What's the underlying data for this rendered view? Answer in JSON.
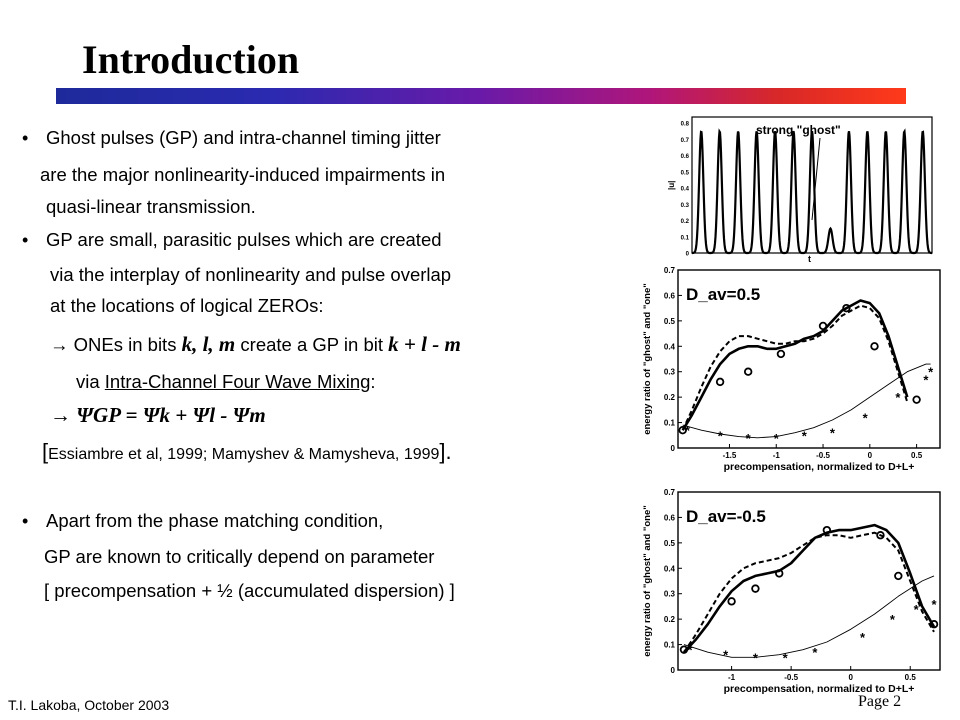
{
  "title": "Introduction",
  "bullets": [
    {
      "lines": [
        "Ghost pulses (GP) and intra-channel timing jitter",
        "are the major nonlinearity-induced  impairments in",
        "quasi-linear transmission."
      ]
    },
    {
      "lines": [
        "GP are small, parasitic pulses which are created",
        "via the interplay of nonlinearity  and pulse overlap",
        "at the locations of logical  ZEROs:"
      ],
      "arrow_line": {
        "arrow": "→",
        "prefix": " ONEs in bits  ",
        "bits": "k, l, m",
        "middle": "  create a GP in bit  ",
        "expr": "k + l - m"
      },
      "via_line": {
        "prefix": "via  ",
        "link": "Intra-Channel Four Wave Mixing",
        "suffix": ":"
      },
      "formula": "→   ΨGP = Ψk + Ψl - Ψm",
      "citation": {
        "open": "[",
        "text": "Essiambre et al, 1999;  Mamyshev & Mamysheva, 1999",
        "close": "]."
      }
    },
    {
      "lines": [
        "Apart from the phase matching condition,",
        "GP are known to critically depend on parameter",
        "[ precompensation + ½ (accumulated dispersion) ]"
      ]
    }
  ],
  "footer": {
    "author": "T.I.  Lakoba,    October 2003",
    "page": "Page 2"
  },
  "top_figure": {
    "annotation": "strong \"ghost\"",
    "ylabel": "|u|",
    "xlabel": "t",
    "yticks": [
      "0.8",
      "0.7",
      "0.6",
      "0.5",
      "0.4",
      "0.3",
      "0.2",
      "0.1",
      "0"
    ]
  },
  "chart_data": [
    {
      "type": "line",
      "label": "D_av=0.5",
      "xlabel": "precompensation, normalized to  D+L+",
      "ylabel": "energy ratio of \"ghost\" and \"one\"",
      "xlim": [
        -2.05,
        0.75
      ],
      "ylim": [
        0,
        0.7
      ],
      "xticks": [
        "-1.5",
        "-1",
        "-0.5",
        "0",
        "0.5"
      ],
      "yticks": [
        "0.7",
        "0.6",
        "0.5",
        "0.4",
        "0.3",
        "0.2",
        "0.1",
        "0"
      ],
      "series": [
        {
          "style": "solid-thick",
          "x": [
            -2.0,
            -1.9,
            -1.8,
            -1.7,
            -1.6,
            -1.5,
            -1.4,
            -1.3,
            -1.2,
            -1.1,
            -1.0,
            -0.9,
            -0.8,
            -0.7,
            -0.6,
            -0.5,
            -0.4,
            -0.3,
            -0.2,
            -0.1,
            0.0,
            0.1,
            0.2,
            0.3,
            0.4
          ],
          "y": [
            0.07,
            0.13,
            0.2,
            0.27,
            0.33,
            0.37,
            0.39,
            0.4,
            0.4,
            0.39,
            0.39,
            0.4,
            0.41,
            0.43,
            0.44,
            0.46,
            0.5,
            0.54,
            0.56,
            0.58,
            0.57,
            0.53,
            0.44,
            0.32,
            0.2
          ]
        },
        {
          "style": "dashed-thick",
          "x": [
            -2.0,
            -1.9,
            -1.8,
            -1.7,
            -1.6,
            -1.5,
            -1.4,
            -1.3,
            -1.2,
            -1.1,
            -1.0,
            -0.9,
            -0.8,
            -0.7,
            -0.6,
            -0.5,
            -0.4,
            -0.3,
            -0.2,
            -0.1,
            0.0,
            0.1,
            0.2,
            0.3,
            0.4
          ],
          "y": [
            0.07,
            0.15,
            0.24,
            0.32,
            0.38,
            0.42,
            0.44,
            0.44,
            0.43,
            0.42,
            0.41,
            0.41,
            0.42,
            0.42,
            0.43,
            0.45,
            0.48,
            0.52,
            0.54,
            0.56,
            0.55,
            0.51,
            0.42,
            0.3,
            0.18
          ]
        },
        {
          "style": "thin",
          "x": [
            -2.0,
            -1.8,
            -1.6,
            -1.4,
            -1.2,
            -1.0,
            -0.8,
            -0.6,
            -0.4,
            -0.2,
            0.0,
            0.2,
            0.4,
            0.6,
            0.65
          ],
          "y": [
            0.09,
            0.07,
            0.055,
            0.045,
            0.04,
            0.045,
            0.06,
            0.08,
            0.11,
            0.15,
            0.2,
            0.25,
            0.3,
            0.33,
            0.33
          ]
        },
        {
          "style": "circles",
          "x": [
            -2.0,
            -1.6,
            -1.3,
            -0.95,
            -0.5,
            -0.25,
            0.05,
            0.5
          ],
          "y": [
            0.07,
            0.26,
            0.3,
            0.37,
            0.48,
            0.55,
            0.4,
            0.19
          ]
        },
        {
          "style": "stars",
          "x": [
            -1.95,
            -1.6,
            -1.3,
            -1.0,
            -0.7,
            -0.4,
            -0.05,
            0.3,
            0.6,
            0.65
          ],
          "y": [
            0.07,
            0.05,
            0.04,
            0.04,
            0.05,
            0.06,
            0.12,
            0.2,
            0.27,
            0.3
          ]
        }
      ]
    },
    {
      "type": "line",
      "label": "D_av=-0.5",
      "xlabel": "precompensation, normalized to  D+L+",
      "ylabel": "energy ratio of \"ghost\" and \"one\"",
      "xlim": [
        -1.45,
        0.75
      ],
      "ylim": [
        0,
        0.7
      ],
      "xticks": [
        "-1",
        "-0.5",
        "0",
        "0.5"
      ],
      "yticks": [
        "0.7",
        "0.6",
        "0.5",
        "0.4",
        "0.3",
        "0.2",
        "0.1",
        "0"
      ],
      "series": [
        {
          "style": "solid-thick",
          "x": [
            -1.4,
            -1.3,
            -1.2,
            -1.1,
            -1.0,
            -0.9,
            -0.8,
            -0.7,
            -0.6,
            -0.5,
            -0.4,
            -0.3,
            -0.2,
            -0.1,
            0.0,
            0.1,
            0.2,
            0.3,
            0.4,
            0.5,
            0.6,
            0.7
          ],
          "y": [
            0.07,
            0.12,
            0.18,
            0.25,
            0.31,
            0.35,
            0.37,
            0.38,
            0.39,
            0.42,
            0.47,
            0.52,
            0.54,
            0.55,
            0.55,
            0.56,
            0.57,
            0.55,
            0.5,
            0.38,
            0.25,
            0.17
          ]
        },
        {
          "style": "dashed-thick",
          "x": [
            -1.4,
            -1.3,
            -1.2,
            -1.1,
            -1.0,
            -0.9,
            -0.8,
            -0.7,
            -0.6,
            -0.5,
            -0.4,
            -0.3,
            -0.2,
            -0.1,
            0.0,
            0.1,
            0.2,
            0.3,
            0.4,
            0.5,
            0.6,
            0.7
          ],
          "y": [
            0.07,
            0.14,
            0.22,
            0.3,
            0.36,
            0.4,
            0.42,
            0.43,
            0.44,
            0.46,
            0.49,
            0.52,
            0.53,
            0.53,
            0.52,
            0.53,
            0.54,
            0.52,
            0.47,
            0.35,
            0.23,
            0.15
          ]
        },
        {
          "style": "thin",
          "x": [
            -1.4,
            -1.2,
            -1.0,
            -0.8,
            -0.6,
            -0.4,
            -0.2,
            0.0,
            0.2,
            0.4,
            0.6,
            0.7
          ],
          "y": [
            0.1,
            0.07,
            0.05,
            0.05,
            0.06,
            0.08,
            0.11,
            0.16,
            0.22,
            0.29,
            0.35,
            0.37
          ]
        },
        {
          "style": "circles",
          "x": [
            -1.4,
            -1.0,
            -0.8,
            -0.6,
            -0.2,
            0.25,
            0.4,
            0.7
          ],
          "y": [
            0.08,
            0.27,
            0.32,
            0.38,
            0.55,
            0.53,
            0.37,
            0.18
          ]
        },
        {
          "style": "stars",
          "x": [
            -1.35,
            -1.05,
            -0.8,
            -0.55,
            -0.3,
            0.1,
            0.35,
            0.55,
            0.7
          ],
          "y": [
            0.08,
            0.06,
            0.05,
            0.05,
            0.07,
            0.13,
            0.2,
            0.24,
            0.26
          ]
        }
      ]
    }
  ]
}
